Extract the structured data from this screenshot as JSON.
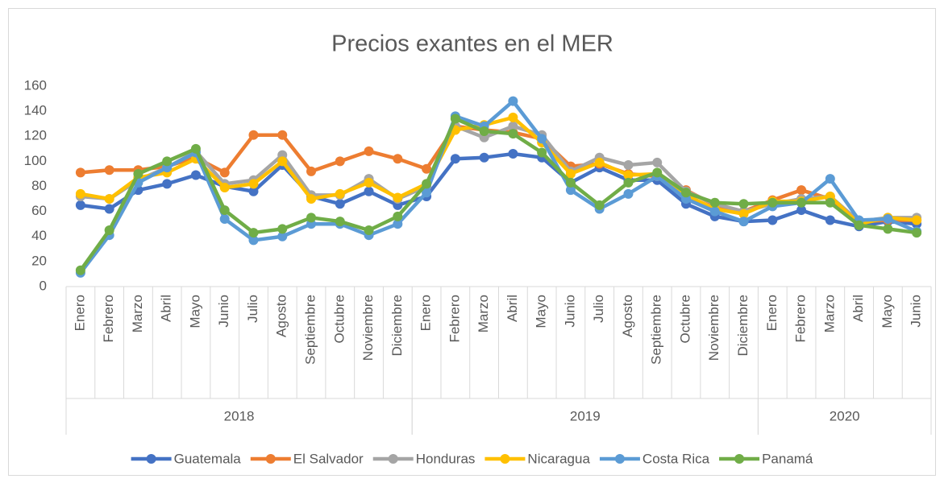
{
  "chart_data": {
    "type": "line",
    "title": "Precios exantes en el MER",
    "categories": [
      "Enero",
      "Febrero",
      "Marzo",
      "Abril",
      "Mayo",
      "Junio",
      "Julio",
      "Agosto",
      "Septiembre",
      "Octubre",
      "Noviembre",
      "Diciembre",
      "Enero",
      "Febrero",
      "Marzo",
      "Abril",
      "Mayo",
      "Junio",
      "Julio",
      "Agosto",
      "Septiembre",
      "Octubre",
      "Noviembre",
      "Diciembre",
      "Enero",
      "Febrero",
      "Marzo",
      "Abril",
      "Mayo",
      "Junio"
    ],
    "groups": [
      {
        "label": "2018",
        "span": 12
      },
      {
        "label": "2019",
        "span": 12
      },
      {
        "label": "2020",
        "span": 6
      }
    ],
    "ylim": [
      0,
      160
    ],
    "yticks": [
      0,
      20,
      40,
      60,
      80,
      100,
      120,
      140,
      160
    ],
    "legend": "bottom",
    "series": [
      {
        "name": "Guatemala",
        "color": "#4472c4",
        "values": [
          65,
          62,
          77,
          82,
          89,
          80,
          76,
          97,
          72,
          66,
          76,
          65,
          72,
          102,
          103,
          106,
          103,
          83,
          95,
          85,
          85,
          66,
          56,
          52,
          53,
          61,
          53,
          48,
          52,
          50
        ]
      },
      {
        "name": "El Salvador",
        "color": "#ed7d31",
        "values": [
          91,
          93,
          93,
          96,
          103,
          91,
          121,
          121,
          92,
          100,
          108,
          102,
          94,
          128,
          125,
          123,
          118,
          96,
          98,
          90,
          88,
          77,
          65,
          60,
          69,
          77,
          70,
          52,
          53,
          53
        ]
      },
      {
        "name": "Honduras",
        "color": "#a5a5a5",
        "values": [
          72,
          70,
          85,
          95,
          108,
          82,
          85,
          105,
          73,
          73,
          86,
          70,
          80,
          128,
          119,
          128,
          121,
          92,
          103,
          97,
          99,
          76,
          66,
          60,
          66,
          70,
          72,
          52,
          55,
          55
        ]
      },
      {
        "name": "Nicaragua",
        "color": "#ffc000",
        "values": [
          74,
          70,
          87,
          91,
          102,
          79,
          82,
          100,
          70,
          74,
          83,
          71,
          82,
          125,
          129,
          135,
          115,
          90,
          99,
          89,
          90,
          73,
          62,
          58,
          68,
          68,
          72,
          50,
          55,
          53
        ]
      },
      {
        "name": "Costa Rica",
        "color": "#5b9bd5",
        "values": [
          11,
          41,
          83,
          95,
          107,
          54,
          37,
          40,
          50,
          50,
          41,
          50,
          75,
          136,
          128,
          148,
          118,
          77,
          62,
          74,
          88,
          70,
          60,
          52,
          64,
          67,
          86,
          53,
          54,
          44
        ]
      },
      {
        "name": "Panamá",
        "color": "#70ad47",
        "values": [
          13,
          45,
          90,
          100,
          110,
          61,
          43,
          46,
          55,
          52,
          45,
          56,
          82,
          134,
          124,
          122,
          107,
          83,
          65,
          83,
          91,
          75,
          67,
          66,
          67,
          67,
          67,
          49,
          46,
          43
        ]
      }
    ]
  }
}
